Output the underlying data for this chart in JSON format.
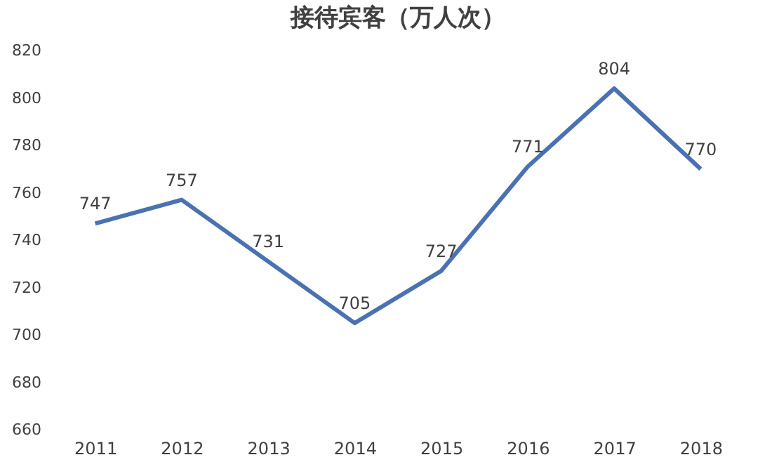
{
  "chart_data": {
    "type": "line",
    "title": "接待宾客（万人次）",
    "categories": [
      "2011",
      "2012",
      "2013",
      "2014",
      "2015",
      "2016",
      "2017",
      "2018"
    ],
    "series": [
      {
        "color": "#4a72b2",
        "values": [
          747,
          757,
          731,
          705,
          727,
          771,
          804,
          770
        ]
      }
    ],
    "ylim": [
      660,
      820
    ],
    "yticks": [
      660,
      680,
      700,
      720,
      740,
      760,
      780,
      800,
      820
    ],
    "data_labels": true,
    "grid": false,
    "legend": false,
    "marker": "none",
    "line_style": "solid"
  }
}
